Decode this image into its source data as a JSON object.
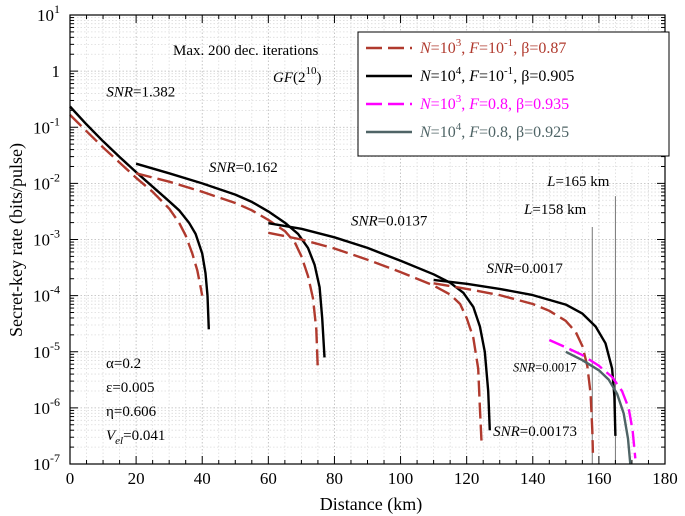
{
  "chart_data": {
    "type": "line",
    "xlabel": "Distance (km)",
    "ylabel": "Secret-key rate (bits/pulse)",
    "xlim": [
      0,
      180
    ],
    "ylim_exponents": [
      -7,
      1
    ],
    "yscale": "log",
    "x_ticks": [
      "0",
      "20",
      "40",
      "60",
      "80",
      "100",
      "120",
      "140",
      "160",
      "180"
    ],
    "y_ticks": [
      {
        "base": "10",
        "exp": "1"
      },
      {
        "base": "1",
        "exp": ""
      },
      {
        "base": "10",
        "exp": "-1"
      },
      {
        "base": "10",
        "exp": "-2"
      },
      {
        "base": "10",
        "exp": "-3"
      },
      {
        "base": "10",
        "exp": "-4"
      },
      {
        "base": "10",
        "exp": "-5"
      },
      {
        "base": "10",
        "exp": "-6"
      },
      {
        "base": "10",
        "exp": "-7"
      }
    ],
    "grid": true,
    "legend": {
      "placement": "top-right",
      "entries": [
        {
          "N": "10",
          "N_exp": "3",
          "F": "10",
          "F_exp": "-1",
          "beta": "0.87",
          "color": "#b03a2e",
          "dash": "dashed"
        },
        {
          "N": "10",
          "N_exp": "4",
          "F": "10",
          "F_exp": "-1",
          "beta": "0.905",
          "color": "#000000",
          "dash": "solid"
        },
        {
          "N": "10",
          "N_exp": "3",
          "F": "0.8",
          "F_exp": "",
          "beta": "0.935",
          "color": "#ff00ff",
          "dash": "dashed"
        },
        {
          "N": "10",
          "N_exp": "4",
          "F": "0.8",
          "F_exp": "",
          "beta": "0.925",
          "color": "#4f6466",
          "dash": "solid"
        }
      ]
    },
    "note": {
      "line1": "Max. 200 dec. iterations",
      "gf_base": "GF",
      "gf_open": "(2",
      "gf_exp": "10",
      "gf_close": ")"
    },
    "params": [
      {
        "sym": "α",
        "val": "=0.2"
      },
      {
        "sym": "ε",
        "val": "=0.005"
      },
      {
        "sym": "η",
        "val": "=0.606"
      },
      {
        "sym": "V",
        "sub": "el",
        "val": "=0.041"
      }
    ],
    "snr_labels": [
      {
        "name": "SNR",
        "value": "=1.382",
        "x": 11,
        "y": -0.45
      },
      {
        "name": "SNR",
        "value": "=0.162",
        "x": 42,
        "y": -1.8
      },
      {
        "name": "SNR",
        "value": "=0.0137",
        "x": 85,
        "y": -2.75
      },
      {
        "name": "SNR",
        "value": "=0.0017",
        "x": 126,
        "y": -3.6
      },
      {
        "name": "SNR",
        "value": "=0.0017",
        "x": 134,
        "y": -5.35
      },
      {
        "name": "SNR",
        "value": "=0.00173",
        "x": 128,
        "y": -6.5
      }
    ],
    "vlines": [
      {
        "x": 158,
        "label": "L",
        "value": "=158 km",
        "label_y": -2.55
      },
      {
        "x": 165,
        "label": "L",
        "value": "=165 km",
        "label_y": -2.05
      }
    ],
    "series": [
      {
        "legend_index": 0,
        "color": "#b03a2e",
        "dash": "dashed",
        "points": [
          [
            0,
            -0.78
          ],
          [
            5,
            -1.07
          ],
          [
            10,
            -1.36
          ],
          [
            15,
            -1.63
          ],
          [
            20,
            -1.9
          ],
          [
            25,
            -2.15
          ],
          [
            30,
            -2.45
          ],
          [
            33,
            -2.7
          ],
          [
            35,
            -2.93
          ],
          [
            37,
            -3.25
          ],
          [
            38.5,
            -3.55
          ],
          [
            39.5,
            -3.85
          ],
          [
            40,
            -4.0
          ]
        ]
      },
      {
        "legend_index": 1,
        "color": "#000000",
        "dash": "solid",
        "points": [
          [
            0,
            -0.63
          ],
          [
            5,
            -0.95
          ],
          [
            10,
            -1.25
          ],
          [
            15,
            -1.53
          ],
          [
            20,
            -1.8
          ],
          [
            25,
            -2.06
          ],
          [
            30,
            -2.32
          ],
          [
            33,
            -2.48
          ],
          [
            36,
            -2.7
          ],
          [
            38,
            -2.9
          ],
          [
            40,
            -3.25
          ],
          [
            41,
            -3.6
          ],
          [
            41.6,
            -4.0
          ],
          [
            42,
            -4.6
          ]
        ]
      },
      {
        "legend_index": 0,
        "color": "#b03a2e",
        "dash": "dashed",
        "points": [
          [
            20,
            -1.82
          ],
          [
            30,
            -1.97
          ],
          [
            40,
            -2.15
          ],
          [
            50,
            -2.35
          ],
          [
            55,
            -2.48
          ],
          [
            60,
            -2.65
          ],
          [
            65,
            -2.85
          ],
          [
            68,
            -3.05
          ],
          [
            70,
            -3.3
          ],
          [
            72,
            -3.65
          ],
          [
            73.5,
            -4.05
          ],
          [
            74.5,
            -4.6
          ],
          [
            75,
            -5.35
          ]
        ]
      },
      {
        "legend_index": 1,
        "color": "#000000",
        "dash": "solid",
        "points": [
          [
            20,
            -1.65
          ],
          [
            30,
            -1.82
          ],
          [
            40,
            -2.0
          ],
          [
            50,
            -2.2
          ],
          [
            55,
            -2.33
          ],
          [
            60,
            -2.5
          ],
          [
            65,
            -2.7
          ],
          [
            69,
            -2.9
          ],
          [
            72,
            -3.15
          ],
          [
            74,
            -3.45
          ],
          [
            75.5,
            -3.85
          ],
          [
            76.3,
            -4.4
          ],
          [
            77,
            -5.1
          ]
        ]
      },
      {
        "legend_index": 0,
        "color": "#b03a2e",
        "dash": "dashed",
        "points": [
          [
            60,
            -2.88
          ],
          [
            70,
            -3.0
          ],
          [
            80,
            -3.16
          ],
          [
            90,
            -3.36
          ],
          [
            100,
            -3.58
          ],
          [
            110,
            -3.82
          ],
          [
            115,
            -3.98
          ],
          [
            118,
            -4.15
          ],
          [
            120,
            -4.4
          ],
          [
            122,
            -4.75
          ],
          [
            123.5,
            -5.3
          ],
          [
            124,
            -6.0
          ],
          [
            124.5,
            -6.6
          ]
        ]
      },
      {
        "legend_index": 1,
        "color": "#000000",
        "dash": "solid",
        "points": [
          [
            60,
            -2.71
          ],
          [
            70,
            -2.81
          ],
          [
            80,
            -2.96
          ],
          [
            90,
            -3.15
          ],
          [
            100,
            -3.38
          ],
          [
            110,
            -3.62
          ],
          [
            115,
            -3.77
          ],
          [
            119,
            -3.95
          ],
          [
            122,
            -4.2
          ],
          [
            124,
            -4.55
          ],
          [
            125.5,
            -5.0
          ],
          [
            126.5,
            -5.7
          ],
          [
            127,
            -6.4
          ]
        ]
      },
      {
        "legend_index": 0,
        "color": "#b03a2e",
        "dash": "dashed",
        "points": [
          [
            110,
            -3.78
          ],
          [
            120,
            -3.88
          ],
          [
            130,
            -3.99
          ],
          [
            140,
            -4.15
          ],
          [
            145,
            -4.27
          ],
          [
            150,
            -4.45
          ],
          [
            153,
            -4.65
          ],
          [
            155,
            -4.9
          ],
          [
            156.5,
            -5.25
          ],
          [
            157.5,
            -5.75
          ],
          [
            158,
            -6.4
          ],
          [
            158.2,
            -6.8
          ]
        ]
      },
      {
        "legend_index": 1,
        "color": "#000000",
        "dash": "solid",
        "points": [
          [
            110,
            -3.72
          ],
          [
            120,
            -3.79
          ],
          [
            130,
            -3.88
          ],
          [
            140,
            -3.99
          ],
          [
            150,
            -4.16
          ],
          [
            155,
            -4.32
          ],
          [
            159,
            -4.55
          ],
          [
            162,
            -4.85
          ],
          [
            164,
            -5.3
          ],
          [
            164.7,
            -5.8
          ],
          [
            165,
            -6.5
          ]
        ]
      },
      {
        "legend_index": 2,
        "color": "#ff00ff",
        "dash": "dashed",
        "points": [
          [
            145,
            -4.79
          ],
          [
            150,
            -4.92
          ],
          [
            155,
            -5.06
          ],
          [
            160,
            -5.25
          ],
          [
            164,
            -5.45
          ],
          [
            167,
            -5.7
          ],
          [
            169,
            -6.0
          ],
          [
            170.2,
            -6.4
          ],
          [
            171,
            -6.9
          ]
        ]
      },
      {
        "legend_index": 3,
        "color": "#4f6466",
        "dash": "solid",
        "points": [
          [
            150,
            -5.0
          ],
          [
            155,
            -5.15
          ],
          [
            160,
            -5.33
          ],
          [
            163,
            -5.5
          ],
          [
            165.5,
            -5.75
          ],
          [
            167.5,
            -6.1
          ],
          [
            168.8,
            -6.55
          ],
          [
            169.5,
            -7.0
          ]
        ]
      }
    ]
  }
}
